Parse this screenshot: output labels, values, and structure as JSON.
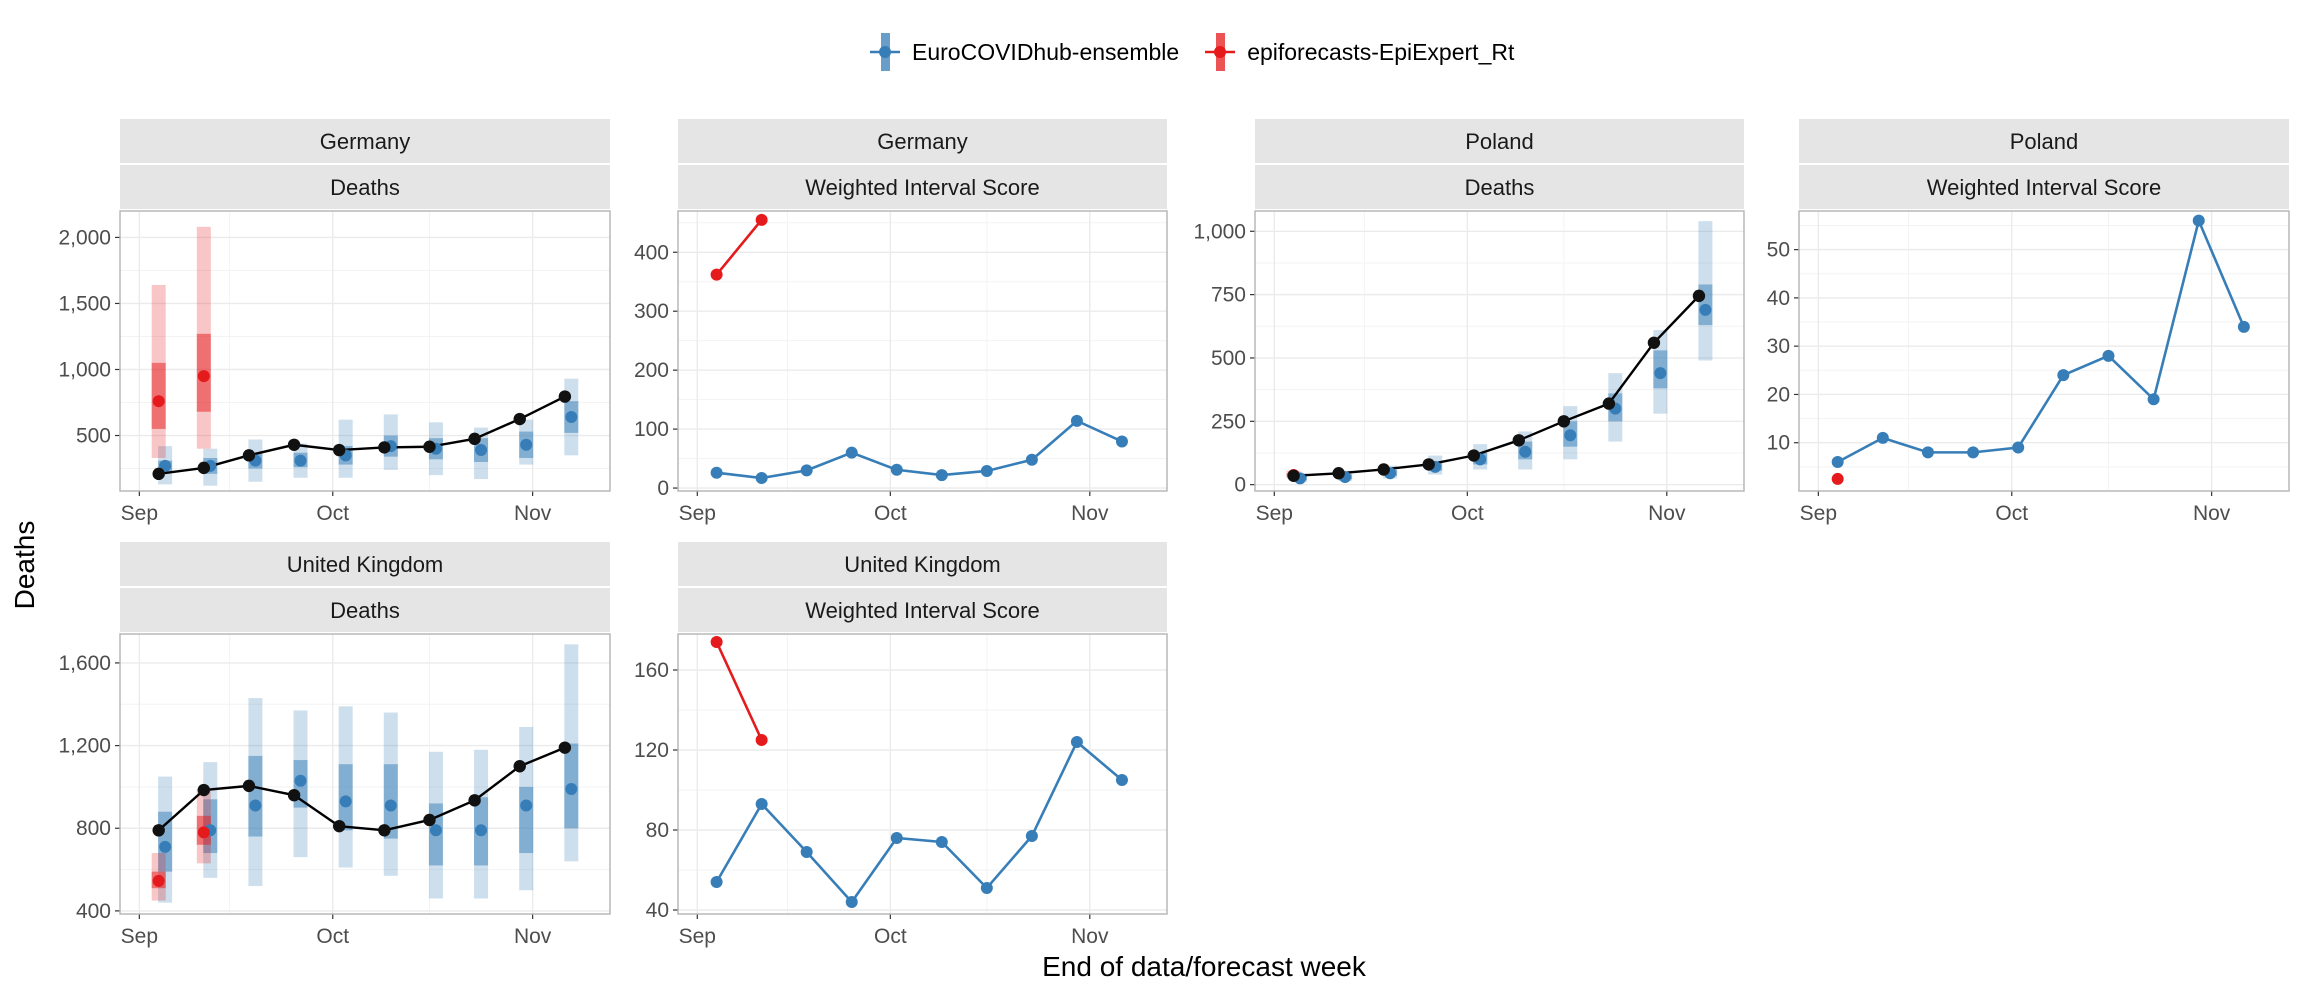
{
  "legend": {
    "items": [
      {
        "label": "EuroCOVIDhub-ensemble",
        "color": "#377eb8"
      },
      {
        "label": "epiforecasts-EpiExpert_Rt",
        "color": "#e41a1c"
      }
    ]
  },
  "axes": {
    "xlabel": "End of data/forecast week",
    "ylabel": "Deaths"
  },
  "colors": {
    "observed": "#000000",
    "ensemble": "#377eb8",
    "epiexpert": "#e41a1c",
    "strip": "#e5e5e5",
    "grid": "#ebebeb",
    "border": "#b3b3b3"
  },
  "chart_data": [
    {
      "type": "line",
      "location": "Germany",
      "target": "Deaths",
      "x_ticks": [
        "Sep",
        "Oct",
        "Nov"
      ],
      "y_ticks": [
        "500",
        "1,000",
        "1,500",
        "2,000"
      ],
      "y_tick_values": [
        500,
        1000,
        1500,
        2000
      ],
      "ylim": [
        80,
        2200
      ],
      "observed": {
        "x": [
          "2021-09-04",
          "2021-09-11",
          "2021-09-18",
          "2021-09-25",
          "2021-10-02",
          "2021-10-09",
          "2021-10-16",
          "2021-10-23",
          "2021-10-30",
          "2021-11-06"
        ],
        "y": [
          210,
          255,
          350,
          430,
          390,
          410,
          415,
          475,
          625,
          795
        ]
      },
      "series": [
        {
          "name": "EuroCOVIDhub-ensemble",
          "x": [
            "2021-09-05",
            "2021-09-12",
            "2021-09-19",
            "2021-09-26",
            "2021-10-03",
            "2021-10-10",
            "2021-10-17",
            "2021-10-24",
            "2021-10-31",
            "2021-11-07"
          ],
          "median": [
            270,
            270,
            310,
            310,
            350,
            420,
            400,
            390,
            430,
            640
          ],
          "q50": [
            [
              230,
              310
            ],
            [
              210,
              330
            ],
            [
              250,
              370
            ],
            [
              260,
              370
            ],
            [
              280,
              420
            ],
            [
              340,
              500
            ],
            [
              320,
              480
            ],
            [
              300,
              480
            ],
            [
              330,
              530
            ],
            [
              520,
              760
            ]
          ],
          "q90": [
            [
              130,
              420
            ],
            [
              120,
              400
            ],
            [
              150,
              470
            ],
            [
              180,
              440
            ],
            [
              180,
              620
            ],
            [
              240,
              660
            ],
            [
              200,
              600
            ],
            [
              170,
              560
            ],
            [
              280,
              620
            ],
            [
              350,
              930
            ]
          ]
        },
        {
          "name": "epiforecasts-EpiExpert_Rt",
          "x": [
            "2021-09-04",
            "2021-09-11"
          ],
          "median": [
            760,
            950
          ],
          "q50": [
            [
              550,
              1050
            ],
            [
              680,
              1270
            ]
          ],
          "q90": [
            [
              330,
              1640
            ],
            [
              400,
              2080
            ]
          ]
        }
      ]
    },
    {
      "type": "line",
      "location": "Germany",
      "target": "Weighted Interval Score",
      "x_ticks": [
        "Sep",
        "Oct",
        "Nov"
      ],
      "y_ticks": [
        "0",
        "100",
        "200",
        "300",
        "400"
      ],
      "y_tick_values": [
        0,
        100,
        200,
        300,
        400
      ],
      "ylim": [
        -5,
        470
      ],
      "series": [
        {
          "name": "EuroCOVIDhub-ensemble",
          "x": [
            "2021-09-04",
            "2021-09-11",
            "2021-09-18",
            "2021-09-25",
            "2021-10-02",
            "2021-10-09",
            "2021-10-16",
            "2021-10-23",
            "2021-10-30",
            "2021-11-06"
          ],
          "y": [
            26,
            17,
            30,
            60,
            31,
            22,
            29,
            48,
            114,
            79
          ]
        },
        {
          "name": "epiforecasts-EpiExpert_Rt",
          "x": [
            "2021-09-04",
            "2021-09-11"
          ],
          "y": [
            362,
            455
          ]
        }
      ]
    },
    {
      "type": "line",
      "location": "Poland",
      "target": "Deaths",
      "x_ticks": [
        "Sep",
        "Oct",
        "Nov"
      ],
      "y_ticks": [
        "0",
        "250",
        "500",
        "750",
        "1,000"
      ],
      "y_tick_values": [
        0,
        250,
        500,
        750,
        1000
      ],
      "ylim": [
        -25,
        1080
      ],
      "observed": {
        "x": [
          "2021-09-04",
          "2021-09-11",
          "2021-09-18",
          "2021-09-25",
          "2021-10-02",
          "2021-10-09",
          "2021-10-16",
          "2021-10-23",
          "2021-10-30",
          "2021-11-06"
        ],
        "y": [
          35,
          45,
          60,
          80,
          115,
          175,
          250,
          320,
          560,
          745
        ]
      },
      "series": [
        {
          "name": "EuroCOVIDhub-ensemble",
          "x": [
            "2021-09-05",
            "2021-09-12",
            "2021-09-19",
            "2021-09-26",
            "2021-10-03",
            "2021-10-10",
            "2021-10-17",
            "2021-10-24",
            "2021-10-31",
            "2021-11-07"
          ],
          "median": [
            25,
            30,
            45,
            70,
            100,
            130,
            195,
            300,
            440,
            690
          ],
          "q50": [
            [
              18,
              35
            ],
            [
              22,
              40
            ],
            [
              35,
              58
            ],
            [
              55,
              90
            ],
            [
              80,
              125
            ],
            [
              100,
              170
            ],
            [
              150,
              250
            ],
            [
              250,
              360
            ],
            [
              380,
              530
            ],
            [
              630,
              790
            ]
          ],
          "q90": [
            [
              10,
              45
            ],
            [
              15,
              55
            ],
            [
              25,
              75
            ],
            [
              40,
              115
            ],
            [
              60,
              160
            ],
            [
              60,
              210
            ],
            [
              100,
              310
            ],
            [
              170,
              440
            ],
            [
              280,
              610
            ],
            [
              490,
              1040
            ]
          ]
        },
        {
          "name": "epiforecasts-EpiExpert_Rt",
          "x": [
            "2021-09-04"
          ],
          "median": [
            38
          ],
          "q50": [
            [
              32,
              45
            ]
          ],
          "q90": [
            [
              25,
              55
            ]
          ]
        }
      ]
    },
    {
      "type": "line",
      "location": "Poland",
      "target": "Weighted Interval Score",
      "x_ticks": [
        "Sep",
        "Oct",
        "Nov"
      ],
      "y_ticks": [
        "10",
        "20",
        "30",
        "40",
        "50"
      ],
      "y_tick_values": [
        10,
        20,
        30,
        40,
        50
      ],
      "ylim": [
        0,
        58
      ],
      "series": [
        {
          "name": "EuroCOVIDhub-ensemble",
          "x": [
            "2021-09-04",
            "2021-09-11",
            "2021-09-18",
            "2021-09-25",
            "2021-10-02",
            "2021-10-09",
            "2021-10-16",
            "2021-10-23",
            "2021-10-30",
            "2021-11-06"
          ],
          "y": [
            6,
            11,
            8,
            8,
            9,
            24,
            28,
            19,
            56,
            34
          ]
        },
        {
          "name": "epiforecasts-EpiExpert_Rt",
          "x": [
            "2021-09-04"
          ],
          "y": [
            2.5
          ]
        }
      ]
    },
    {
      "type": "line",
      "location": "United Kingdom",
      "target": "Deaths",
      "x_ticks": [
        "Sep",
        "Oct",
        "Nov"
      ],
      "y_ticks": [
        "400",
        "800",
        "1,200",
        "1,600"
      ],
      "y_tick_values": [
        400,
        800,
        1200,
        1600
      ],
      "ylim": [
        385,
        1740
      ],
      "observed": {
        "x": [
          "2021-09-04",
          "2021-09-11",
          "2021-09-18",
          "2021-09-25",
          "2021-10-02",
          "2021-10-09",
          "2021-10-16",
          "2021-10-23",
          "2021-10-30",
          "2021-11-06"
        ],
        "y": [
          790,
          985,
          1005,
          960,
          810,
          790,
          840,
          935,
          1100,
          1190
        ]
      },
      "series": [
        {
          "name": "EuroCOVIDhub-ensemble",
          "x": [
            "2021-09-05",
            "2021-09-12",
            "2021-09-19",
            "2021-09-26",
            "2021-10-03",
            "2021-10-10",
            "2021-10-17",
            "2021-10-24",
            "2021-10-31",
            "2021-11-07"
          ],
          "median": [
            710,
            790,
            910,
            1030,
            930,
            910,
            790,
            790,
            910,
            990
          ],
          "q50": [
            [
              590,
              880
            ],
            [
              680,
              940
            ],
            [
              760,
              1150
            ],
            [
              900,
              1130
            ],
            [
              790,
              1110
            ],
            [
              750,
              1110
            ],
            [
              620,
              920
            ],
            [
              620,
              950
            ],
            [
              680,
              1000
            ],
            [
              800,
              1210
            ]
          ],
          "q90": [
            [
              440,
              1050
            ],
            [
              560,
              1120
            ],
            [
              520,
              1430
            ],
            [
              660,
              1370
            ],
            [
              610,
              1390
            ],
            [
              570,
              1360
            ],
            [
              460,
              1170
            ],
            [
              460,
              1180
            ],
            [
              500,
              1290
            ],
            [
              640,
              1690
            ]
          ]
        },
        {
          "name": "epiforecasts-EpiExpert_Rt",
          "x": [
            "2021-09-04",
            "2021-09-11"
          ],
          "median": [
            545,
            780
          ],
          "q50": [
            [
              510,
              590
            ],
            [
              720,
              860
            ]
          ],
          "q90": [
            [
              450,
              680
            ],
            [
              630,
              990
            ]
          ]
        }
      ]
    },
    {
      "type": "line",
      "location": "United Kingdom",
      "target": "Weighted Interval Score",
      "x_ticks": [
        "Sep",
        "Oct",
        "Nov"
      ],
      "y_ticks": [
        "40",
        "80",
        "120",
        "160"
      ],
      "y_tick_values": [
        40,
        80,
        120,
        160
      ],
      "ylim": [
        38,
        178
      ],
      "series": [
        {
          "name": "EuroCOVIDhub-ensemble",
          "x": [
            "2021-09-04",
            "2021-09-11",
            "2021-09-18",
            "2021-09-25",
            "2021-10-02",
            "2021-10-09",
            "2021-10-16",
            "2021-10-23",
            "2021-10-30",
            "2021-11-06"
          ],
          "y": [
            54,
            93,
            69,
            44,
            76,
            74,
            51,
            77,
            124,
            105
          ]
        },
        {
          "name": "epiforecasts-EpiExpert_Rt",
          "x": [
            "2021-09-04",
            "2021-09-11"
          ],
          "y": [
            174,
            125
          ]
        }
      ]
    }
  ]
}
